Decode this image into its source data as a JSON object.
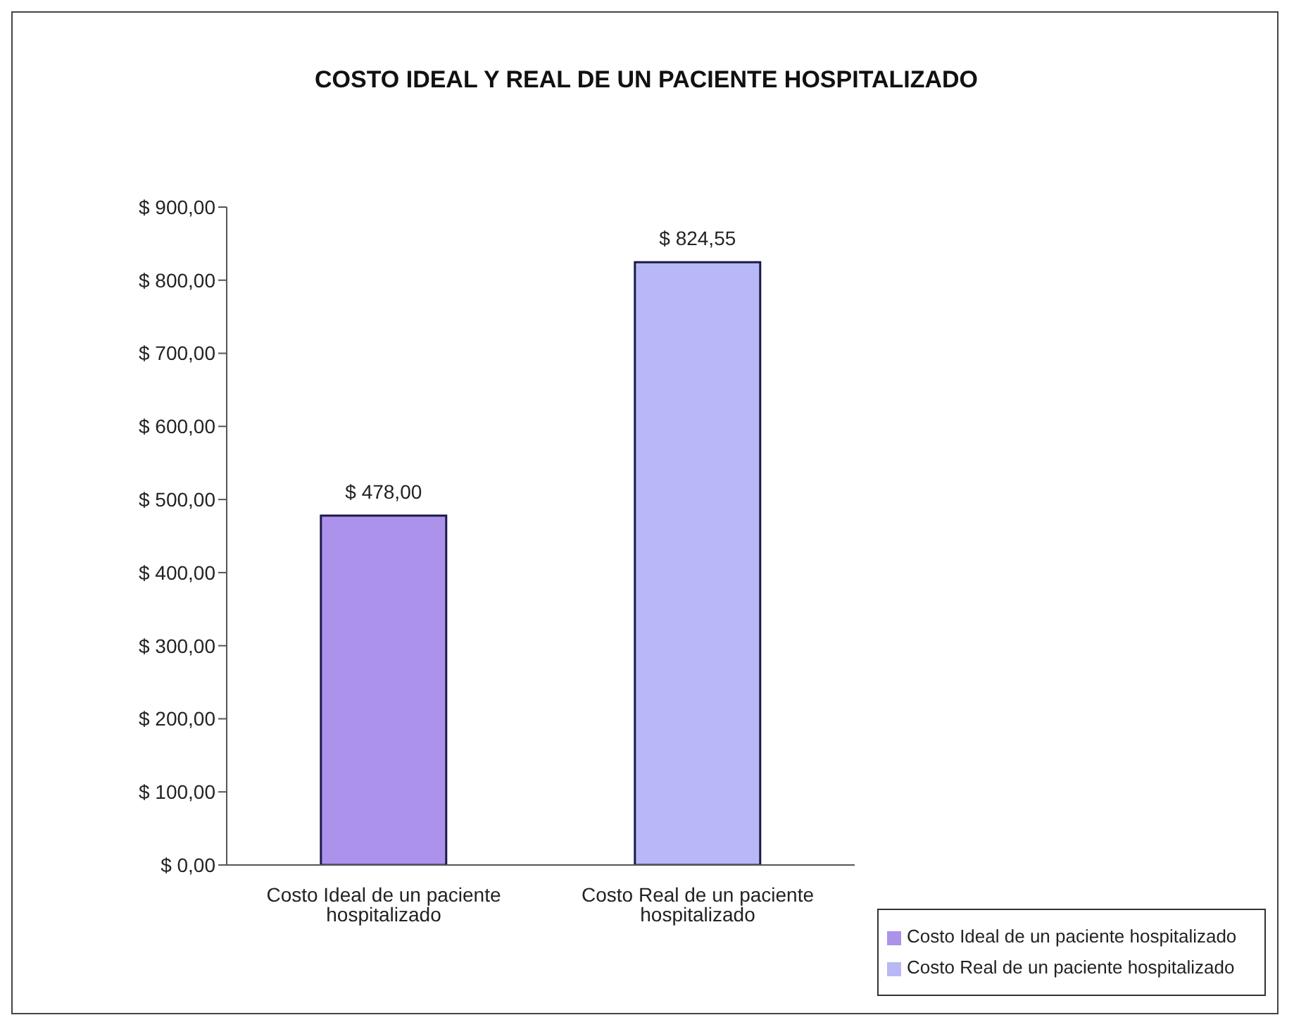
{
  "chart_data": {
    "type": "bar",
    "title": "COSTO IDEAL Y REAL DE UN PACIENTE HOSPITALIZADO",
    "categories": [
      "Costo Ideal de un paciente hospitalizado",
      "Costo Real de un paciente hospitalizado"
    ],
    "series": [
      {
        "name": "Costo Ideal de un paciente hospitalizado",
        "color": "#ad92ec",
        "values": [
          478,
          null
        ],
        "value_labels": [
          "$ 478,00",
          null
        ]
      },
      {
        "name": "Costo Real de un paciente hospitalizado",
        "color": "#b8b8f6",
        "values": [
          null,
          824.55
        ],
        "value_labels": [
          null,
          "$ 824,55"
        ]
      }
    ],
    "stacked": true,
    "ylim": [
      0,
      900
    ],
    "yticks": [
      {
        "value": 0,
        "label": "$ 0,00"
      },
      {
        "value": 100,
        "label": "$ 100,00"
      },
      {
        "value": 200,
        "label": "$ 200,00"
      },
      {
        "value": 300,
        "label": "$ 300,00"
      },
      {
        "value": 400,
        "label": "$ 400,00"
      },
      {
        "value": 500,
        "label": "$ 500,00"
      },
      {
        "value": 600,
        "label": "$ 600,00"
      },
      {
        "value": 700,
        "label": "$ 700,00"
      },
      {
        "value": 800,
        "label": "$ 800,00"
      },
      {
        "value": 900,
        "label": "$ 900,00"
      }
    ],
    "legend": "bottom right"
  }
}
